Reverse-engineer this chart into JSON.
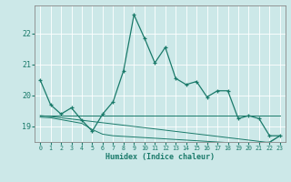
{
  "xlabel": "Humidex (Indice chaleur)",
  "background_color": "#cce8e8",
  "grid_color": "#b0d0d0",
  "line_color": "#1a7a6a",
  "x_values": [
    0,
    1,
    2,
    3,
    4,
    5,
    6,
    7,
    8,
    9,
    10,
    11,
    12,
    13,
    14,
    15,
    16,
    17,
    18,
    19,
    20,
    21,
    22,
    23
  ],
  "main_line": [
    20.5,
    19.7,
    19.4,
    19.6,
    19.2,
    18.85,
    19.4,
    19.8,
    20.8,
    22.6,
    21.85,
    21.05,
    21.55,
    20.55,
    20.35,
    20.45,
    19.95,
    20.15,
    20.15,
    19.25,
    19.35,
    19.25,
    18.7,
    18.7
  ],
  "flat_lines": [
    [
      19.35,
      19.35,
      19.35,
      19.35,
      19.35,
      19.35,
      19.35,
      19.35,
      19.35,
      19.35,
      19.35,
      19.35,
      19.35,
      19.35,
      19.35,
      19.35,
      19.35,
      19.35,
      19.35,
      19.35,
      19.35,
      19.35,
      19.35,
      19.35
    ],
    [
      19.35,
      19.32,
      19.28,
      19.24,
      19.2,
      19.16,
      19.12,
      19.08,
      19.04,
      19.0,
      18.96,
      18.92,
      18.88,
      18.84,
      18.8,
      18.76,
      18.72,
      18.68,
      18.64,
      18.6,
      18.56,
      18.52,
      18.48,
      18.7
    ],
    [
      19.3,
      19.28,
      19.22,
      19.16,
      19.1,
      18.9,
      18.75,
      18.7,
      18.68,
      18.66,
      18.64,
      18.62,
      18.6,
      18.58,
      18.56,
      18.54,
      18.52,
      18.5,
      18.48,
      18.46,
      18.44,
      18.46,
      18.5,
      18.7
    ]
  ],
  "ylim": [
    18.5,
    22.9
  ],
  "yticks": [
    19,
    20,
    21,
    22
  ],
  "xticks": [
    0,
    1,
    2,
    3,
    4,
    5,
    6,
    7,
    8,
    9,
    10,
    11,
    12,
    13,
    14,
    15,
    16,
    17,
    18,
    19,
    20,
    21,
    22,
    23
  ],
  "xlim": [
    -0.5,
    23.5
  ],
  "figsize": [
    3.2,
    2.0
  ],
  "dpi": 100
}
